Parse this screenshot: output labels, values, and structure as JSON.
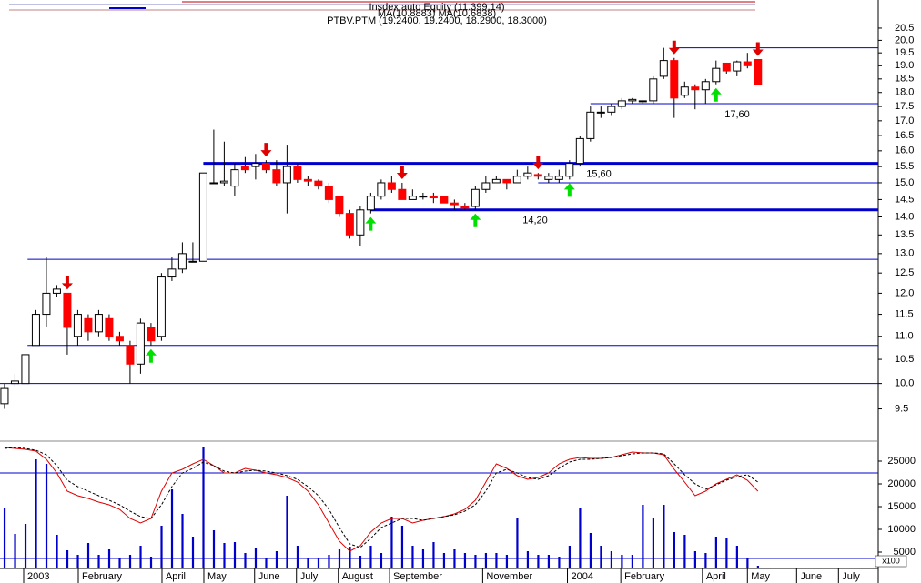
{
  "chart_data": [
    {
      "type": "candlestick",
      "header": [
        "Insdex.auto Equity (11.399,14)",
        "MA(10.8883) MA(10.6838)",
        "PTBV.PTM (19.2400, 19.2400, 18.2900, 18.3000)"
      ],
      "x": [
        0,
        1,
        2,
        3,
        4,
        5,
        6,
        7,
        8,
        9,
        10,
        11,
        12,
        13,
        14,
        15,
        16,
        17,
        18,
        19,
        20,
        21,
        22,
        23,
        24,
        25,
        26,
        27,
        28,
        29,
        30,
        31,
        32,
        33,
        34,
        35,
        36,
        37,
        38,
        39,
        40,
        41,
        42,
        43,
        44,
        45,
        46,
        47,
        48,
        49,
        50,
        51,
        52,
        53,
        54,
        55,
        56,
        57,
        58,
        59,
        60,
        61,
        62,
        63,
        64,
        65,
        66,
        67,
        68,
        69,
        70,
        71,
        72
      ],
      "open": [
        9.6,
        10.0,
        10.0,
        10.8,
        11.5,
        12.0,
        12.0,
        11.0,
        11.4,
        11.1,
        11.4,
        11.0,
        10.8,
        10.4,
        11.2,
        11.0,
        12.4,
        12.6,
        12.8,
        12.8,
        15.0,
        15.0,
        14.9,
        15.5,
        15.5,
        15.6,
        15.4,
        15.0,
        15.5,
        15.1,
        15.05,
        14.9,
        14.6,
        14.1,
        13.5,
        14.2,
        14.6,
        15.0,
        14.8,
        14.5,
        14.6,
        14.6,
        14.6,
        14.4,
        14.3,
        14.3,
        14.8,
        15.0,
        15.1,
        15.0,
        15.2,
        15.25,
        15.1,
        15.1,
        15.2,
        15.6,
        16.4,
        17.3,
        17.3,
        17.5,
        17.7,
        17.7,
        17.7,
        18.6,
        19.2,
        17.9,
        18.2,
        18.1,
        18.4,
        19.1,
        18.8,
        19.15,
        19.24
      ],
      "high": [
        10.0,
        10.2,
        10.6,
        11.6,
        12.9,
        12.2,
        12.0,
        11.6,
        11.5,
        11.6,
        11.5,
        11.1,
        10.9,
        11.4,
        11.3,
        12.5,
        12.9,
        13.3,
        13.3,
        15.3,
        16.7,
        16.3,
        15.6,
        15.8,
        15.9,
        15.7,
        15.7,
        16.2,
        15.6,
        15.2,
        15.1,
        15.0,
        14.6,
        14.2,
        14.3,
        14.7,
        15.1,
        15.2,
        15.0,
        14.8,
        14.7,
        14.7,
        14.6,
        14.5,
        14.4,
        14.9,
        15.2,
        15.2,
        15.1,
        15.4,
        15.5,
        15.3,
        15.3,
        15.4,
        15.7,
        16.5,
        17.5,
        17.5,
        17.6,
        17.8,
        17.8,
        17.7,
        18.6,
        19.7,
        19.3,
        18.4,
        18.3,
        18.5,
        19.2,
        19.1,
        19.2,
        19.5,
        19.24
      ],
      "low": [
        9.5,
        9.95,
        10.0,
        10.8,
        11.2,
        11.9,
        10.6,
        10.8,
        10.9,
        11.0,
        10.9,
        10.8,
        10.0,
        10.2,
        10.8,
        10.9,
        12.3,
        12.5,
        12.8,
        12.8,
        15.0,
        14.9,
        14.6,
        15.3,
        15.1,
        15.3,
        14.9,
        14.1,
        15.0,
        14.9,
        14.8,
        14.4,
        14.0,
        13.4,
        13.2,
        14.1,
        14.5,
        14.7,
        14.5,
        14.5,
        14.5,
        14.4,
        14.4,
        14.2,
        14.2,
        14.2,
        14.7,
        15.0,
        14.8,
        15.0,
        15.1,
        15.1,
        15.0,
        15.0,
        15.1,
        15.5,
        16.3,
        17.1,
        17.2,
        17.4,
        17.6,
        17.6,
        17.6,
        18.5,
        17.1,
        17.8,
        17.4,
        17.6,
        18.3,
        18.7,
        18.6,
        18.9,
        18.29
      ],
      "close": [
        9.9,
        10.05,
        10.6,
        11.5,
        12.0,
        12.1,
        11.2,
        11.5,
        11.1,
        11.5,
        11.0,
        10.9,
        10.4,
        11.3,
        10.9,
        12.4,
        12.6,
        13.0,
        12.8,
        15.3,
        15.0,
        15.05,
        15.4,
        15.4,
        15.6,
        15.4,
        15.0,
        15.5,
        15.1,
        15.05,
        14.9,
        14.5,
        14.1,
        13.5,
        14.2,
        14.6,
        15.0,
        14.8,
        14.5,
        14.6,
        14.6,
        14.55,
        14.4,
        14.35,
        14.25,
        14.8,
        15.0,
        15.1,
        15.0,
        15.2,
        15.3,
        15.2,
        15.2,
        15.2,
        15.6,
        16.4,
        17.3,
        17.3,
        17.5,
        17.7,
        17.75,
        17.7,
        18.5,
        19.2,
        17.8,
        18.2,
        18.1,
        18.4,
        18.9,
        18.8,
        19.15,
        19.0,
        18.3
      ],
      "up_color": "#ffffff",
      "down_color": "#ff0000",
      "log_scale": true,
      "xlim": [
        -0.43,
        83.5
      ],
      "xticks": [
        {
          "value": 1.83,
          "label": "2003"
        },
        {
          "value": 7.05,
          "label": "February"
        },
        {
          "value": 15.05,
          "label": "April"
        },
        {
          "value": 19.05,
          "label": "May"
        },
        {
          "value": 23.9,
          "label": "June"
        },
        {
          "value": 27.9,
          "label": "July"
        },
        {
          "value": 31.9,
          "label": "August"
        },
        {
          "value": 36.8,
          "label": "September"
        },
        {
          "value": 45.7,
          "label": "November"
        },
        {
          "value": 53.8,
          "label": "2004"
        },
        {
          "value": 58.9,
          "label": "February"
        },
        {
          "value": 66.7,
          "label": "April"
        },
        {
          "value": 71.0,
          "label": "May"
        },
        {
          "value": 75.7,
          "label": "June"
        },
        {
          "value": 79.7,
          "label": "July"
        }
      ],
      "ylim": [
        8.95,
        21.7
      ],
      "yticks": [
        9.5,
        {
          "value": 10,
          "label": "10.0"
        },
        10.5,
        {
          "value": 11,
          "label": "11.0"
        },
        11.5,
        {
          "value": 12,
          "label": "12.0"
        },
        12.5,
        {
          "value": 13,
          "label": "13.0"
        },
        13.5,
        {
          "value": 14,
          "label": "14.0"
        },
        14.5,
        {
          "value": 15,
          "label": "15.0"
        },
        15.5,
        {
          "value": 16,
          "label": "16.0"
        },
        16.5,
        {
          "value": 17,
          "label": "17.0"
        },
        17.5,
        {
          "value": 18,
          "label": "18.0"
        },
        18.5,
        {
          "value": 19,
          "label": "19.0"
        },
        19.5,
        {
          "value": 20,
          "label": "20.0"
        },
        20.5
      ],
      "hlines": [
        {
          "value": 10.0,
          "from": -0.43
        },
        {
          "value": 10.8,
          "from": 2.2
        },
        {
          "value": 12.85,
          "from": 2.2
        },
        {
          "value": 13.2,
          "from": 16.1
        },
        {
          "value": 14.2,
          "from": 35,
          "thick": true,
          "label": "14,20"
        },
        {
          "value": 15.0,
          "from": 51
        },
        {
          "value": 15.6,
          "from": 19,
          "thick": true,
          "label": "15,60"
        },
        {
          "value": 17.6,
          "from": 56,
          "label": "17,60"
        },
        {
          "value": 19.7,
          "from": 64
        }
      ],
      "line_color": "#0000cc",
      "sell_signals": [
        6,
        25,
        38,
        51,
        64,
        72
      ],
      "sell_color": "#e00000",
      "buy_signals": [
        14,
        35,
        45,
        54,
        68
      ],
      "buy_color": "#00e000"
    },
    {
      "type": "combo",
      "unit_label": "x100",
      "ylim": [
        1400,
        29000
      ],
      "yticks": [
        5000,
        10000,
        15000,
        20000,
        25000
      ],
      "hlines": [
        {
          "value": 22400
        },
        {
          "value": 3600
        }
      ],
      "line_color": "#0000cc",
      "series": [
        {
          "style": "bar",
          "color": "#0000cc",
          "values": [
            14800,
            9000,
            11200,
            25400,
            24400,
            8800,
            5400,
            4400,
            7000,
            4400,
            5600,
            3800,
            4400,
            6400,
            4000,
            10800,
            18800,
            13400,
            8400,
            28000,
            9800,
            7000,
            7200,
            4800,
            5800,
            3800,
            5200,
            17400,
            6400,
            3800,
            3600,
            4400,
            5600,
            6200,
            4200,
            6400,
            4800,
            12800,
            10800,
            6400,
            5600,
            7200,
            4800,
            5600,
            4800,
            4400,
            4800,
            4800,
            4400,
            12400,
            5200,
            4400,
            4400,
            4000,
            6400,
            14800,
            9200,
            6400,
            5200,
            4400,
            4400,
            15400,
            12400,
            15400,
            9400,
            8800,
            5200,
            4800,
            8400,
            8000,
            6400,
            3600,
            2000
          ]
        },
        {
          "style": "line",
          "color": "#e00000",
          "values": [
            28000,
            27800,
            27600,
            27200,
            25400,
            22400,
            18400,
            17400,
            16800,
            16000,
            15400,
            14400,
            12400,
            11400,
            12400,
            18400,
            22400,
            23200,
            24400,
            25400,
            24000,
            22400,
            22400,
            23400,
            23000,
            22400,
            22000,
            21400,
            20400,
            18400,
            15400,
            11400,
            7400,
            5200,
            6400,
            9400,
            11400,
            12400,
            12400,
            11400,
            12000,
            12400,
            12800,
            13400,
            14400,
            16400,
            20400,
            24400,
            23400,
            21800,
            21000,
            21400,
            22400,
            24400,
            25400,
            25800,
            25600,
            25600,
            25800,
            26400,
            27000,
            26800,
            26800,
            26400,
            23200,
            20400,
            17400,
            18400,
            20000,
            21000,
            22000,
            20800,
            18400
          ]
        },
        {
          "style": "dashed",
          "color": "#000000",
          "values": [
            27800,
            28000,
            27800,
            27400,
            26400,
            24000,
            20800,
            19400,
            18400,
            17400,
            16400,
            15400,
            14000,
            12800,
            12400,
            15400,
            19400,
            22400,
            23400,
            24800,
            24000,
            22800,
            22400,
            22800,
            23000,
            22800,
            22400,
            21800,
            21000,
            19400,
            17400,
            14400,
            10400,
            6800,
            6000,
            8000,
            10400,
            11400,
            12400,
            12400,
            12000,
            12400,
            12800,
            13200,
            14000,
            15400,
            18400,
            22400,
            23200,
            22400,
            21400,
            21000,
            21800,
            23400,
            24800,
            25400,
            25400,
            25600,
            25800,
            26200,
            26600,
            26800,
            26800,
            26600,
            24400,
            22000,
            20000,
            18800,
            19800,
            20800,
            21600,
            22000,
            20400
          ]
        }
      ]
    }
  ]
}
